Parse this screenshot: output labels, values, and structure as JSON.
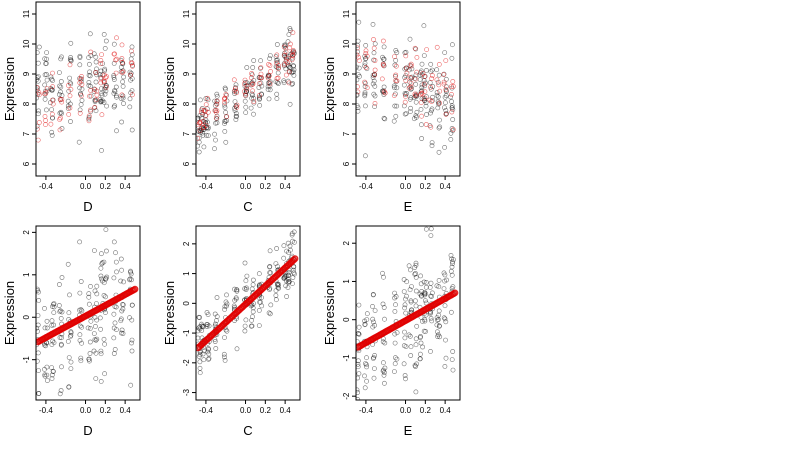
{
  "chart_data": [
    {
      "type": "scatter",
      "xlabel": "D",
      "ylabel": "Expression",
      "xticks": [
        -0.4,
        0.0,
        0.2,
        0.4
      ],
      "xtick_labels": [
        "-0.4",
        "0.0",
        "0.2",
        "0.4"
      ],
      "yticks": [
        6,
        7,
        8,
        9,
        10,
        11
      ],
      "ytick_labels": [
        "6",
        "7",
        "8",
        "9",
        "10",
        "11"
      ],
      "xlim": [
        -0.5,
        0.55
      ],
      "ylim": [
        5.6,
        11.4
      ],
      "x_groups": [
        -0.48,
        -0.4,
        -0.34,
        -0.25,
        -0.16,
        -0.05,
        0.04,
        0.1,
        0.16,
        0.2,
        0.3,
        0.37,
        0.46
      ],
      "series": [
        {
          "color": "#000000",
          "points_per_group": 14,
          "center_start": 8.7,
          "center_end": 8.5,
          "spread": 1.5
        },
        {
          "color": "#e00000",
          "points_per_group": 6,
          "center_start": 7.8,
          "center_end": 9.5,
          "spread": 1.1
        }
      ],
      "grid": false
    },
    {
      "type": "scatter",
      "xlabel": "C",
      "ylabel": "Expression",
      "xticks": [
        -0.4,
        0.0,
        0.2,
        0.4
      ],
      "xtick_labels": [
        "-0.4",
        "0.0",
        "0.2",
        "0.4"
      ],
      "yticks": [
        6,
        7,
        8,
        9,
        10,
        11
      ],
      "ytick_labels": [
        "6",
        "7",
        "8",
        "9",
        "10",
        "11"
      ],
      "xlim": [
        -0.5,
        0.55
      ],
      "ylim": [
        5.6,
        11.4
      ],
      "x_groups": [
        -0.47,
        -0.43,
        -0.39,
        -0.3,
        -0.2,
        -0.1,
        0.0,
        0.07,
        0.15,
        0.24,
        0.32,
        0.4,
        0.44,
        0.48
      ],
      "series": [
        {
          "color": "#000000",
          "points_per_group": 14,
          "center_start": 7.1,
          "center_end": 9.6,
          "spread": 0.9
        },
        {
          "color": "#e00000",
          "points_per_group": 6,
          "center_start": 7.4,
          "center_end": 9.8,
          "spread": 0.6
        }
      ],
      "grid": false
    },
    {
      "type": "scatter",
      "xlabel": "E",
      "ylabel": "Expression",
      "xticks": [
        -0.4,
        0.0,
        0.2,
        0.4
      ],
      "xtick_labels": [
        "-0.4",
        "0.0",
        "0.2",
        "0.4"
      ],
      "yticks": [
        6,
        7,
        8,
        9,
        10,
        11
      ],
      "ytick_labels": [
        "6",
        "7",
        "8",
        "9",
        "10",
        "11"
      ],
      "xlim": [
        -0.5,
        0.55
      ],
      "ylim": [
        5.6,
        11.4
      ],
      "x_groups": [
        -0.48,
        -0.4,
        -0.32,
        -0.22,
        -0.1,
        0.0,
        0.05,
        0.1,
        0.16,
        0.2,
        0.26,
        0.33,
        0.4,
        0.47
      ],
      "series": [
        {
          "color": "#000000",
          "points_per_group": 14,
          "center_start": 9.0,
          "center_end": 8.0,
          "spread": 1.4
        },
        {
          "color": "#e00000",
          "points_per_group": 6,
          "center_start": 9.2,
          "center_end": 8.6,
          "spread": 1.2
        }
      ],
      "grid": false
    },
    {
      "type": "scatter",
      "xlabel": "D",
      "ylabel": "Expression",
      "xticks": [
        -0.4,
        0.0,
        0.2,
        0.4
      ],
      "xtick_labels": [
        "-0.4",
        "0.0",
        "0.2",
        "0.4"
      ],
      "yticks": [
        -1,
        0,
        1,
        2
      ],
      "ytick_labels": [
        "-1",
        "0",
        "1",
        "2"
      ],
      "xlim": [
        -0.5,
        0.55
      ],
      "ylim": [
        -1.95,
        2.15
      ],
      "x_groups": [
        -0.48,
        -0.4,
        -0.33,
        -0.25,
        -0.16,
        -0.05,
        0.04,
        0.1,
        0.16,
        0.2,
        0.3,
        0.37,
        0.46
      ],
      "series": [
        {
          "color": "#000000",
          "points_per_group": 16,
          "center_start": -0.5,
          "center_end": 0.6,
          "spread": 1.4
        }
      ],
      "fit_line": {
        "color": "#e00000",
        "x": [
          -0.48,
          0.5
        ],
        "y": [
          -0.58,
          0.66
        ]
      },
      "grid": false
    },
    {
      "type": "scatter",
      "xlabel": "C",
      "ylabel": "Expression",
      "xticks": [
        -0.4,
        0.0,
        0.2,
        0.4
      ],
      "xtick_labels": [
        "-0.4",
        "0.0",
        "0.2",
        "0.4"
      ],
      "yticks": [
        -3,
        -2,
        -1,
        0,
        1,
        2
      ],
      "ytick_labels": [
        "-3",
        "-2",
        "-1",
        "0",
        "1",
        "2"
      ],
      "xlim": [
        -0.5,
        0.55
      ],
      "ylim": [
        -3.25,
        2.6
      ],
      "x_groups": [
        -0.47,
        -0.43,
        -0.38,
        -0.3,
        -0.2,
        -0.1,
        0.0,
        0.07,
        0.15,
        0.24,
        0.32,
        0.4,
        0.44,
        0.48
      ],
      "series": [
        {
          "color": "#000000",
          "points_per_group": 16,
          "center_start": -1.5,
          "center_end": 1.5,
          "spread": 1.0
        }
      ],
      "fit_line": {
        "color": "#e00000",
        "x": [
          -0.48,
          0.5
        ],
        "y": [
          -1.5,
          1.5
        ]
      },
      "grid": false
    },
    {
      "type": "scatter",
      "xlabel": "E",
      "ylabel": "Expression",
      "xticks": [
        -0.4,
        0.0,
        0.2,
        0.4
      ],
      "xtick_labels": [
        "-0.4",
        "0.0",
        "0.2",
        "0.4"
      ],
      "yticks": [
        -2,
        -1,
        0,
        1,
        2
      ],
      "ytick_labels": [
        "-2",
        "-1",
        "0",
        "1",
        "2"
      ],
      "xlim": [
        -0.5,
        0.55
      ],
      "ylim": [
        -2.1,
        2.45
      ],
      "x_groups": [
        -0.48,
        -0.4,
        -0.32,
        -0.22,
        -0.1,
        0.0,
        0.05,
        0.1,
        0.16,
        0.2,
        0.26,
        0.33,
        0.4,
        0.47
      ],
      "series": [
        {
          "color": "#000000",
          "points_per_group": 16,
          "center_start": -0.7,
          "center_end": 0.7,
          "spread": 1.5
        }
      ],
      "fit_line": {
        "color": "#e00000",
        "x": [
          -0.48,
          0.5
        ],
        "y": [
          -0.72,
          0.7
        ]
      },
      "grid": false
    }
  ]
}
